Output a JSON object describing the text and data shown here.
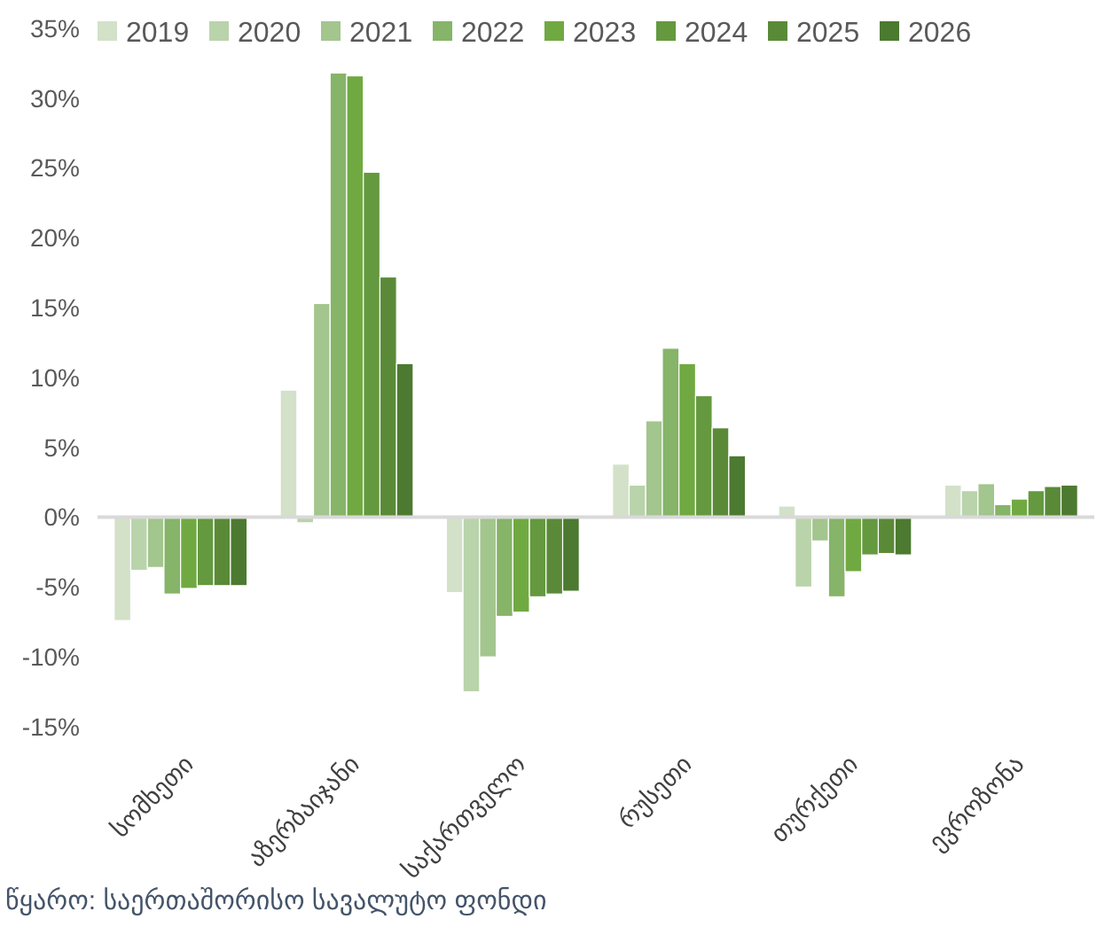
{
  "chart_data": {
    "type": "bar",
    "categories": [
      "სომხეთი",
      "აზერბაიჯანი",
      "საქართველო",
      "რუსეთი",
      "თურქეთი",
      "ევროზონა"
    ],
    "series": [
      {
        "name": "2019",
        "color": "#d3e1c9",
        "values": [
          -7.4,
          9.1,
          -5.4,
          3.8,
          0.8,
          2.3
        ]
      },
      {
        "name": "2020",
        "color": "#b9d3ab",
        "values": [
          -3.8,
          -0.4,
          -12.5,
          2.3,
          -5.0,
          1.9
        ]
      },
      {
        "name": "2021",
        "color": "#a3c58e",
        "values": [
          -3.6,
          15.3,
          -10.0,
          6.9,
          -1.7,
          2.4
        ]
      },
      {
        "name": "2022",
        "color": "#86b468",
        "values": [
          -5.5,
          31.8,
          -7.1,
          12.1,
          -5.7,
          0.9
        ]
      },
      {
        "name": "2023",
        "color": "#70a941",
        "values": [
          -5.1,
          31.6,
          -6.8,
          11.0,
          -3.9,
          1.3
        ]
      },
      {
        "name": "2024",
        "color": "#64993f",
        "values": [
          -4.9,
          24.7,
          -5.7,
          8.7,
          -2.7,
          1.9
        ]
      },
      {
        "name": "2025",
        "color": "#5a8a37",
        "values": [
          -4.9,
          17.2,
          -5.5,
          6.4,
          -2.6,
          2.2
        ]
      },
      {
        "name": "2026",
        "color": "#4c7a30",
        "values": [
          -4.9,
          11.0,
          -5.3,
          4.4,
          -2.7,
          2.3
        ]
      }
    ],
    "ylim": [
      -15,
      35
    ],
    "yticks": [
      {
        "value": -15,
        "label": "-15%"
      },
      {
        "value": -10,
        "label": "-10%"
      },
      {
        "value": -5,
        "label": "-5%"
      },
      {
        "value": 0,
        "label": "0%"
      },
      {
        "value": 5,
        "label": "5%"
      },
      {
        "value": 10,
        "label": "10%"
      },
      {
        "value": 15,
        "label": "15%"
      },
      {
        "value": 20,
        "label": "20%"
      },
      {
        "value": 25,
        "label": "25%"
      },
      {
        "value": 30,
        "label": "30%"
      },
      {
        "value": 35,
        "label": "35%"
      }
    ],
    "legend": "top",
    "annotations": [
      "წყარო: საერთაშორისო სავალუტო ფონდი"
    ]
  }
}
